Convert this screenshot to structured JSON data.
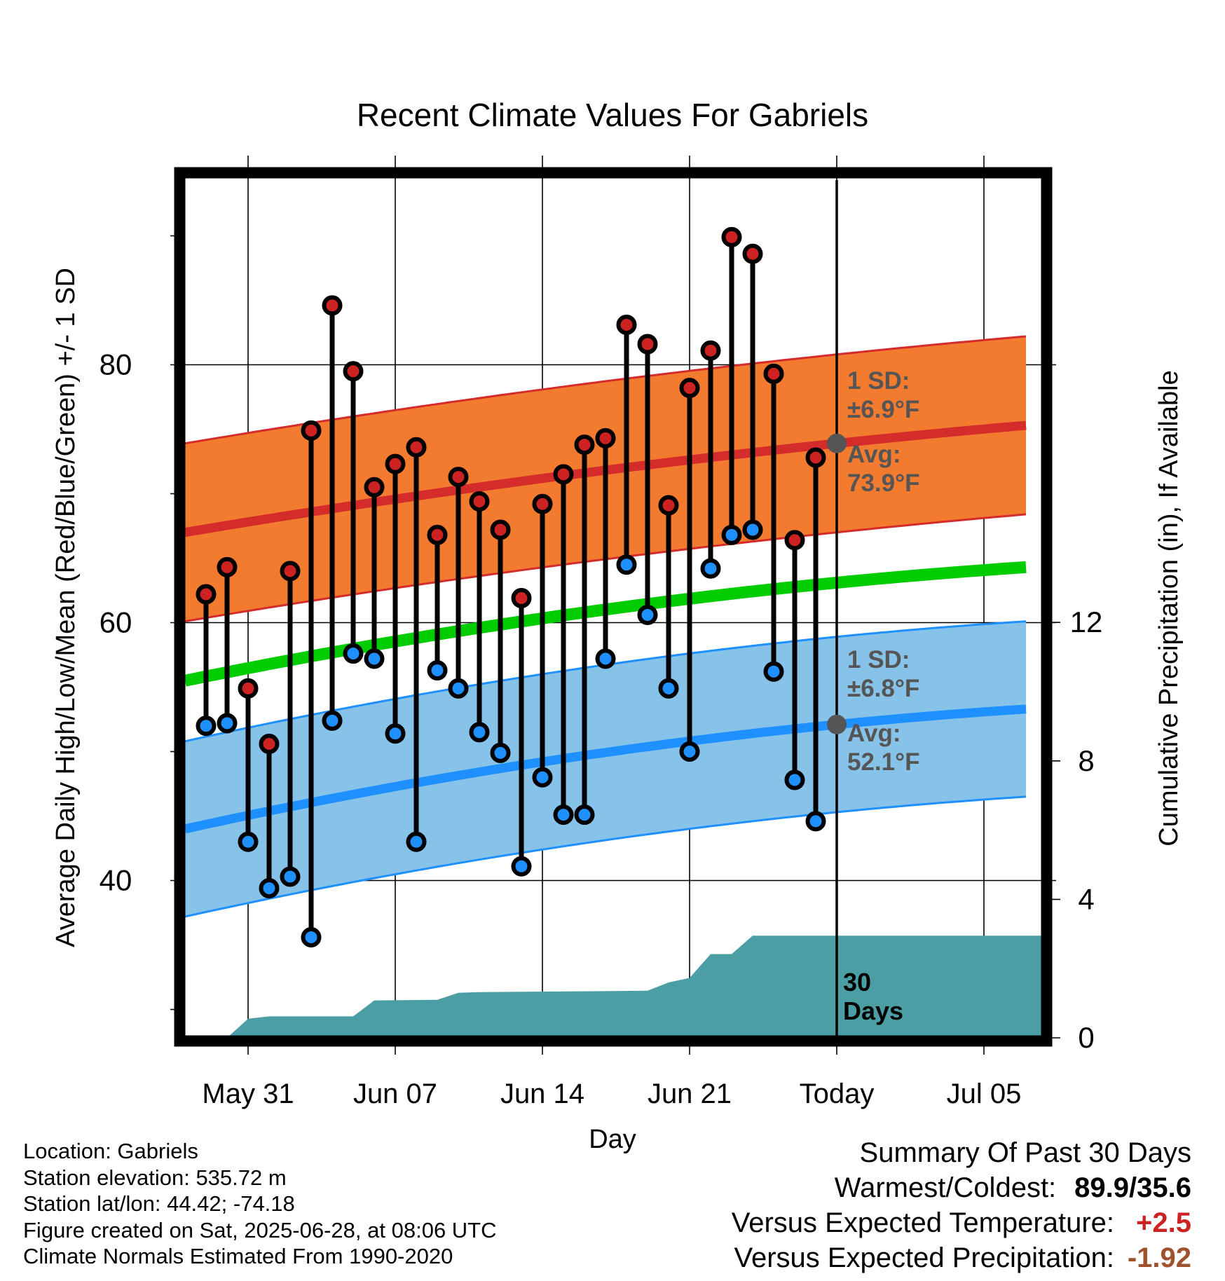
{
  "chart_data": {
    "type": "line",
    "title": "Recent Climate Values For Gabriels",
    "xlabel": "Day",
    "ylabel": "Average Daily High/Low/Mean (Red/Blue/Green) +/- 1 SD",
    "ylabel_right": "Cumulative Precipitation (in), If Available",
    "x_tick_labels": [
      "May 31",
      "Jun 07",
      "Jun 14",
      "Jun 21",
      "Today",
      "Jul 05"
    ],
    "y_ticks_left": [
      "40",
      "60",
      "80"
    ],
    "y_ticks_right": [
      "0",
      "4",
      "8",
      "12"
    ],
    "ylim_left": [
      28.2,
      95.2
    ],
    "ylim_right": [
      0,
      26
    ],
    "x_range_days": [
      "May 28",
      "Jul 07"
    ],
    "today": "Jun 28",
    "days": [
      "May 29",
      "May 30",
      "May 31",
      "Jun 01",
      "Jun 02",
      "Jun 03",
      "Jun 04",
      "Jun 05",
      "Jun 06",
      "Jun 07",
      "Jun 08",
      "Jun 09",
      "Jun 10",
      "Jun 11",
      "Jun 12",
      "Jun 13",
      "Jun 14",
      "Jun 15",
      "Jun 16",
      "Jun 17",
      "Jun 18",
      "Jun 19",
      "Jun 20",
      "Jun 21",
      "Jun 22",
      "Jun 23",
      "Jun 24",
      "Jun 25",
      "Jun 26",
      "Jun 27"
    ],
    "observed_high": [
      62.2,
      64.3,
      54.9,
      50.6,
      64.0,
      74.9,
      84.6,
      79.5,
      70.5,
      72.3,
      73.6,
      66.8,
      71.3,
      69.4,
      67.2,
      61.9,
      69.2,
      71.5,
      73.8,
      74.3,
      83.1,
      81.6,
      69.1,
      78.2,
      81.1,
      89.9,
      88.6,
      79.3,
      66.4,
      72.8
    ],
    "observed_low": [
      52.0,
      52.2,
      43.0,
      39.4,
      40.3,
      35.6,
      52.4,
      57.6,
      57.2,
      51.4,
      43.0,
      56.3,
      54.9,
      51.5,
      49.9,
      41.1,
      48.0,
      45.1,
      45.1,
      57.2,
      64.5,
      60.6,
      54.9,
      50.0,
      64.2,
      66.8,
      67.2,
      56.2,
      47.8,
      44.6
    ],
    "normal_high": {
      "start": 67.0,
      "today": 73.9,
      "end": 75.3,
      "sd": 6.9
    },
    "normal_low": {
      "start": 44.0,
      "today": 52.1,
      "end": 53.3,
      "sd": 6.8
    },
    "normal_mean": {
      "start": 55.5,
      "today": 63.1,
      "end": 64.3
    },
    "cumulative_precip": {
      "x": [
        "May 30",
        "May 31",
        "Jun 01",
        "Jun 05",
        "Jun 06",
        "Jun 09",
        "Jun 10",
        "Jun 11",
        "Jun 19",
        "Jun 20",
        "Jun 21",
        "Jun 22",
        "Jun 23",
        "Jun 24",
        "Jun 25",
        "Jul 07"
      ],
      "values": [
        0.0,
        0.55,
        0.62,
        0.62,
        1.08,
        1.1,
        1.3,
        1.32,
        1.36,
        1.6,
        1.73,
        2.42,
        2.42,
        2.95,
        2.95,
        2.95
      ]
    },
    "annotations": {
      "high_sd": [
        "1 SD:",
        "±6.9°F"
      ],
      "high_avg": [
        "Avg:",
        "73.9°F"
      ],
      "low_sd": [
        "1 SD:",
        "±6.8°F"
      ],
      "low_avg": [
        "Avg:",
        "52.1°F"
      ],
      "days_label": [
        "30",
        "Days"
      ]
    },
    "colors": {
      "high_band": "#f27b30",
      "high_line": "#d42b2b",
      "low_band": "#87c3e8",
      "low_line": "#1e90ff",
      "mean_line": "#00cc00",
      "precip": "#4b9ea4",
      "high_marker": "#cc2222",
      "low_marker": "#1e90ff",
      "annotation": "#555555"
    }
  },
  "info": {
    "location": "Location: Gabriels",
    "elevation": "Station elevation: 535.72 m",
    "latlon": "Station lat/lon: 44.42; -74.18",
    "created": "Figure created on Sat, 2025-06-28, at 08:06 UTC",
    "normals": "Climate Normals Estimated From 1990-2020"
  },
  "summary": {
    "title": "Summary Of Past 30 Days",
    "warm_label": "Warmest/Coldest:",
    "warm_value": "89.9/35.6",
    "temp_label": "Versus Expected Temperature:",
    "temp_value": "+2.5",
    "precip_label": "Versus Expected Precipitation:",
    "precip_value": "-1.92"
  }
}
